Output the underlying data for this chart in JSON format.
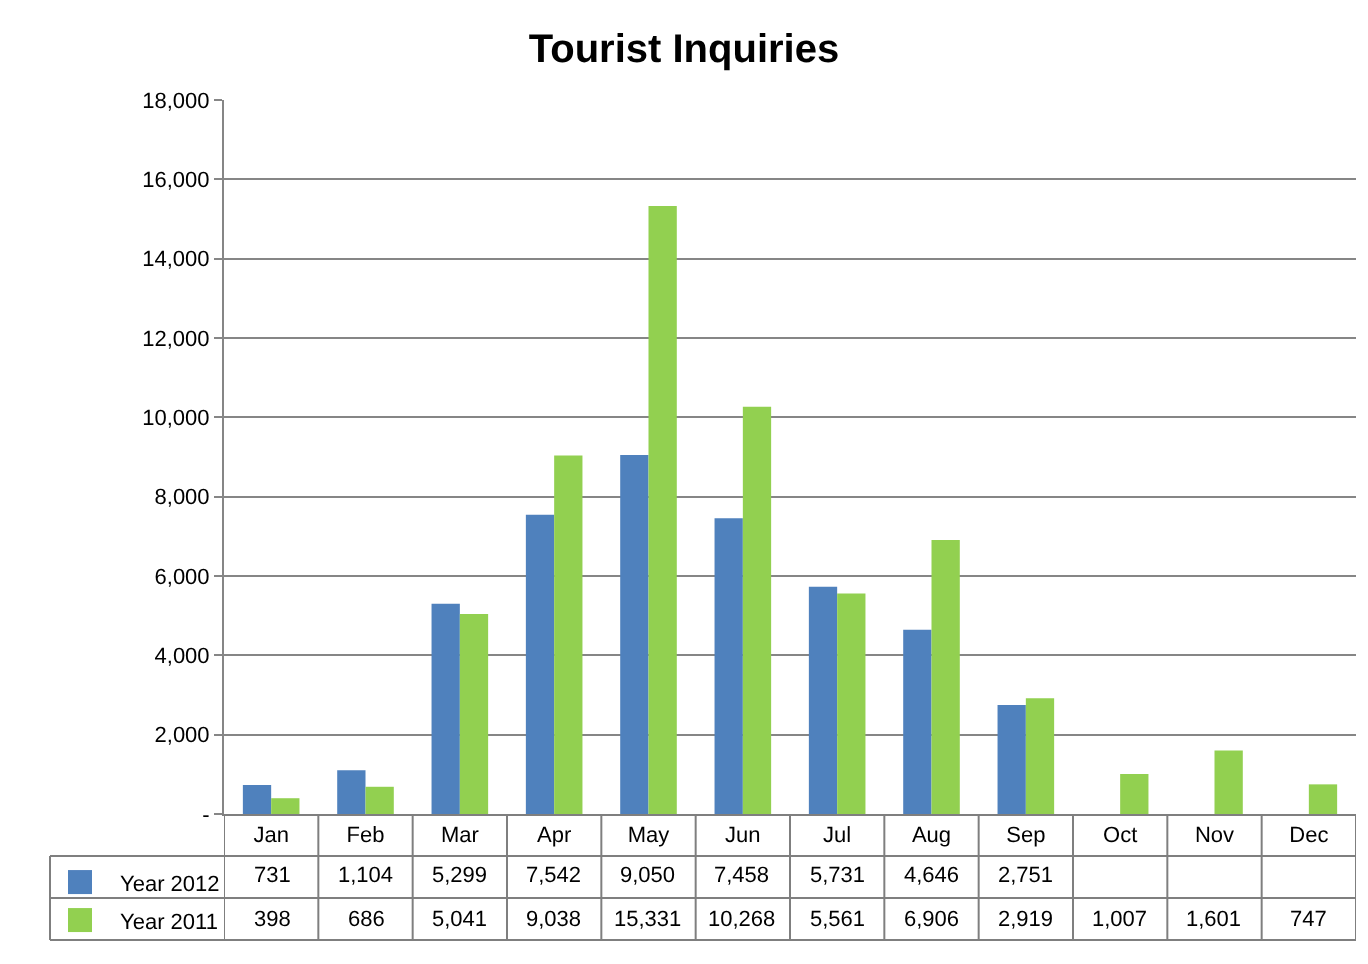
{
  "chart_data": {
    "type": "bar",
    "title": "Tourist Inquiries",
    "categories": [
      "Jan",
      "Feb",
      "Mar",
      "Apr",
      "May",
      "Jun",
      "Jul",
      "Aug",
      "Sep",
      "Oct",
      "Nov",
      "Dec"
    ],
    "series": [
      {
        "name": "Year 2012",
        "color": "#4f81bd",
        "values": [
          731,
          1104,
          5299,
          7542,
          9050,
          7458,
          5731,
          4646,
          2751,
          null,
          null,
          null
        ],
        "value_labels": [
          "731",
          "1,104",
          "5,299",
          "7,542",
          "9,050",
          "7,458",
          "5,731",
          "4,646",
          "2,751",
          null,
          null,
          null
        ]
      },
      {
        "name": "Year 2011",
        "color": "#92d050",
        "values": [
          398,
          686,
          5041,
          9038,
          15331,
          10268,
          5561,
          6906,
          2919,
          1007,
          1601,
          747
        ],
        "value_labels": [
          "398",
          "686",
          "5,041",
          "9,038",
          "15,331",
          "10,268",
          "5,561",
          "6,906",
          "2,919",
          "1,007",
          "1,601",
          "747"
        ]
      }
    ],
    "ylim": [
      0,
      18000
    ],
    "yticks": [
      {
        "value": 0,
        "label": "-"
      },
      {
        "value": 2000,
        "label": "2,000"
      },
      {
        "value": 4000,
        "label": "4,000"
      },
      {
        "value": 6000,
        "label": "6,000"
      },
      {
        "value": 8000,
        "label": "8,000"
      },
      {
        "value": 10000,
        "label": "10,000"
      },
      {
        "value": 12000,
        "label": "12,000"
      },
      {
        "value": 14000,
        "label": "14,000"
      },
      {
        "value": 16000,
        "label": "16,000"
      },
      {
        "value": 18000,
        "label": "18,000"
      }
    ],
    "grid": "y",
    "legend": "bottom left"
  }
}
